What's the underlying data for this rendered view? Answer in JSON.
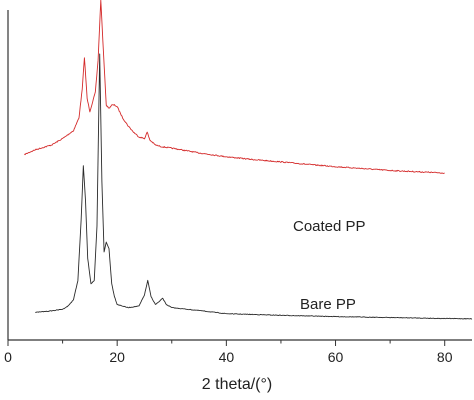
{
  "chart_data": {
    "type": "line",
    "title": "",
    "xlabel": "2 theta/(°)",
    "ylabel": "",
    "xlim": [
      0,
      85
    ],
    "ylim": [
      0,
      100
    ],
    "x_ticks": [
      0,
      20,
      40,
      60,
      80
    ],
    "y_ticks_labeled": false,
    "grid": false,
    "legend": "none",
    "series": [
      {
        "name": "Coated PP",
        "color": "#d42a2a",
        "x": [
          3,
          5,
          8,
          10,
          12,
          13,
          13.6,
          14,
          14.5,
          15,
          16,
          16.5,
          17,
          17.5,
          18,
          18.5,
          19,
          19.5,
          20,
          21,
          22,
          23,
          24,
          25,
          25.5,
          26,
          27,
          28,
          30,
          35,
          40,
          45,
          50,
          55,
          60,
          65,
          70,
          75,
          80
        ],
        "y": [
          52.5,
          54,
          55.5,
          57.5,
          60,
          64,
          73,
          83,
          70,
          66,
          72,
          82,
          101,
          84,
          68,
          67,
          68,
          68,
          67.5,
          64,
          61.5,
          59.5,
          58,
          57.5,
          59.5,
          57,
          55.5,
          55,
          54.5,
          53,
          51.8,
          50.9,
          50.2,
          49.4,
          48.7,
          48.1,
          47.5,
          47.1,
          46.7
        ]
      },
      {
        "name": "Bare PP",
        "color": "#2a2a2a",
        "x": [
          5,
          8,
          10,
          11,
          12,
          12.8,
          13.4,
          13.8,
          14.2,
          14.6,
          15.2,
          15.8,
          16.3,
          16.8,
          17.2,
          17.6,
          18,
          18.5,
          19,
          19.5,
          20,
          22,
          24,
          25,
          25.6,
          26.2,
          27,
          27.8,
          28.3,
          29,
          30,
          35,
          40,
          50,
          60,
          70,
          80,
          85
        ],
        "y": [
          3,
          3.5,
          4,
          5,
          7,
          13,
          32,
          49,
          38,
          20,
          12,
          13,
          30,
          84,
          44,
          22,
          25,
          23,
          12,
          8,
          5.5,
          4.5,
          5,
          8.5,
          13,
          8,
          5.5,
          6.5,
          7.5,
          5.5,
          4.5,
          3.6,
          2.6,
          2.1,
          1.7,
          1.4,
          1.1,
          1
        ]
      }
    ],
    "annotations": [
      {
        "text": "Coated PP",
        "series": "Coated PP"
      },
      {
        "text": "Bare PP",
        "series": "Bare PP"
      }
    ]
  }
}
